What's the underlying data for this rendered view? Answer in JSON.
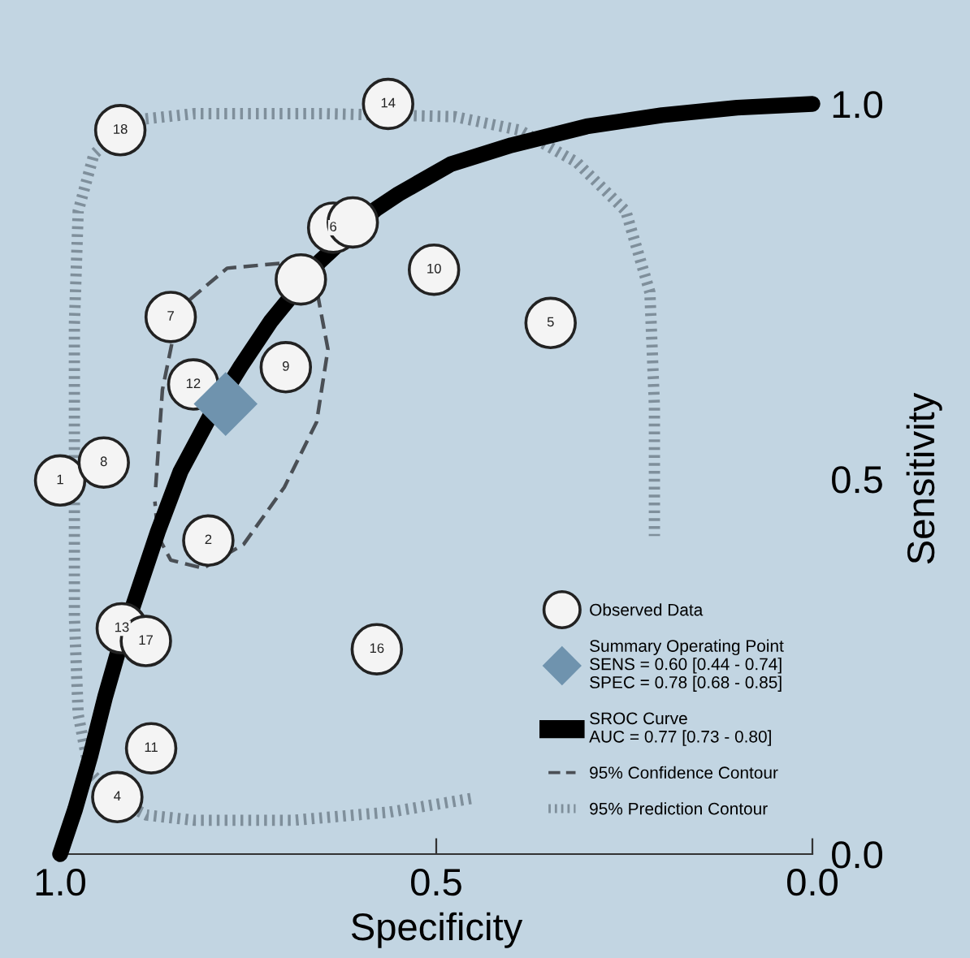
{
  "chart_data": {
    "type": "scatter",
    "xlabel": "Specificity",
    "ylabel": "Sensitivity",
    "xlim": [
      1.0,
      0.0
    ],
    "ylim": [
      0.0,
      1.0
    ],
    "xticks": [
      {
        "value": 1.0,
        "label": "1.0"
      },
      {
        "value": 0.5,
        "label": "0.5"
      },
      {
        "value": 0.0,
        "label": "0.0"
      }
    ],
    "yticks": [
      {
        "value": 0.0,
        "label": "0.0"
      },
      {
        "value": 0.5,
        "label": "0.5"
      },
      {
        "value": 1.0,
        "label": "1.0"
      }
    ],
    "grid": false,
    "legend": "bottom right",
    "series": [
      {
        "name": "95% Prediction Contour",
        "type": "line",
        "line_style": "dotted",
        "marker": "none",
        "color": "#7f8f9b",
        "x": [
          0.924,
          0.961,
          0.976,
          0.981,
          0.981,
          0.981,
          0.976,
          0.955,
          0.907,
          0.821,
          0.648,
          0.475,
          0.389,
          0.313,
          0.248,
          0.216,
          0.21,
          0.21,
          null,
          0.454,
          0.562,
          0.691,
          0.821,
          0.885,
          0.924
        ],
        "values": [
          0.071,
          0.11,
          0.186,
          0.316,
          0.489,
          0.706,
          0.857,
          0.933,
          0.978,
          0.987,
          0.987,
          0.983,
          0.965,
          0.922,
          0.857,
          0.749,
          0.597,
          0.424,
          null,
          0.074,
          0.056,
          0.045,
          0.045,
          0.052,
          0.071
        ]
      },
      {
        "name": "95% Confidence Contour",
        "type": "line",
        "line_style": "dashed",
        "marker": "none",
        "color": "#4a4f55",
        "x": [
          0.873,
          0.864,
          0.842,
          0.778,
          0.702,
          0.659,
          0.644,
          0.659,
          0.702,
          0.756,
          0.81,
          0.853,
          0.87,
          0.874
        ],
        "values": [
          0.489,
          0.619,
          0.727,
          0.781,
          0.788,
          0.753,
          0.673,
          0.576,
          0.489,
          0.413,
          0.381,
          0.392,
          0.424,
          0.47
        ]
      },
      {
        "name": "Observed Data",
        "type": "scatter",
        "marker": "circle",
        "color": "#f4f4f4",
        "x": [
          1.0,
          0.803,
          0.924,
          0.348,
          0.637,
          0.853,
          0.942,
          0.7,
          0.503,
          0.879,
          0.823,
          0.918,
          0.564,
          0.579,
          0.886,
          0.92,
          0.611,
          0.68
        ],
        "values": [
          0.498,
          0.418,
          0.076,
          0.708,
          0.835,
          0.716,
          0.522,
          0.649,
          0.779,
          0.141,
          0.626,
          0.301,
          1.0,
          0.273,
          0.284,
          0.965,
          0.842,
          0.766
        ]
      },
      {
        "name": "SROC Curve\nAUC = 0.77 [0.73 - 0.80]",
        "type": "line",
        "line_style": "solid",
        "marker": "none",
        "color": "#000000",
        "x": [
          1.0,
          0.98,
          0.96,
          0.94,
          0.92,
          0.9,
          0.87,
          0.84,
          0.8,
          0.76,
          0.72,
          0.655,
          0.58,
          0.55,
          0.48,
          0.4,
          0.3,
          0.2,
          0.1,
          0.0
        ],
        "values": [
          0.0,
          0.06,
          0.13,
          0.21,
          0.28,
          0.34,
          0.43,
          0.51,
          0.585,
          0.65,
          0.71,
          0.79,
          0.86,
          0.88,
          0.92,
          0.945,
          0.97,
          0.985,
          0.995,
          1.0
        ]
      },
      {
        "name": "Summary Operating Point\nSENS = 0.60 [0.44 - 0.74]\nSPEC = 0.78 [0.68 - 0.85]",
        "type": "scatter",
        "marker": "diamond",
        "color": "#6f93ae",
        "x": [
          0.78
        ],
        "values": [
          0.6
        ]
      }
    ],
    "annotations": [
      {
        "text": "1",
        "x": 1.0,
        "y": 0.498
      },
      {
        "text": "2",
        "x": 0.803,
        "y": 0.418
      },
      {
        "text": "4",
        "x": 0.924,
        "y": 0.076
      },
      {
        "text": "5",
        "x": 0.348,
        "y": 0.708
      },
      {
        "text": "6",
        "x": 0.637,
        "y": 0.835
      },
      {
        "text": "7",
        "x": 0.853,
        "y": 0.716
      },
      {
        "text": "8",
        "x": 0.942,
        "y": 0.522
      },
      {
        "text": "9",
        "x": 0.7,
        "y": 0.649
      },
      {
        "text": "10",
        "x": 0.503,
        "y": 0.779
      },
      {
        "text": "11",
        "x": 0.879,
        "y": 0.141
      },
      {
        "text": "12",
        "x": 0.823,
        "y": 0.626
      },
      {
        "text": "13",
        "x": 0.918,
        "y": 0.301
      },
      {
        "text": "14",
        "x": 0.564,
        "y": 1.0
      },
      {
        "text": "16",
        "x": 0.579,
        "y": 0.273
      },
      {
        "text": "17",
        "x": 0.886,
        "y": 0.284
      },
      {
        "text": "18",
        "x": 0.92,
        "y": 0.965
      }
    ]
  }
}
